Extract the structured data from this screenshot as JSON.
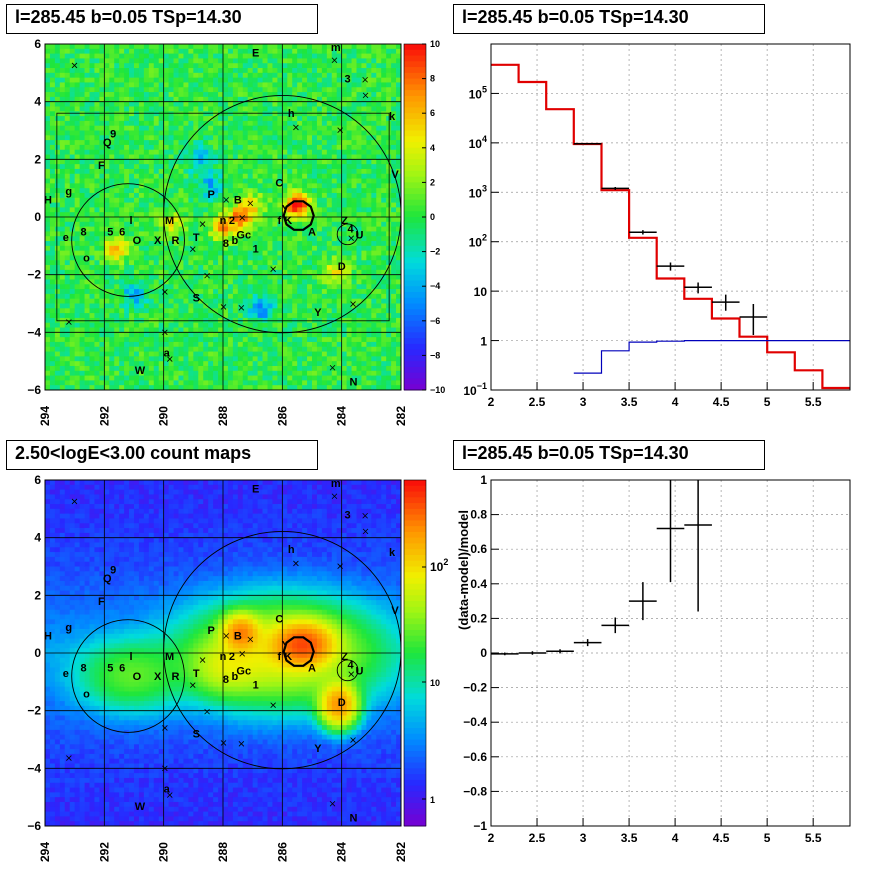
{
  "titles": {
    "tl": "l=285.45 b=0.05 TSp=14.30",
    "tr": "l=285.45 b=0.05 TSp=14.30",
    "bl": "2.50<logE<3.00 count maps",
    "br": "l=285.45 b=0.05 TSp=14.30"
  },
  "chart_data": [
    {
      "id": "residual-map",
      "type": "heatmap",
      "x_ticks": [
        "294",
        "292",
        "290",
        "288",
        "286",
        "284",
        "282"
      ],
      "y_ticks": [
        "6",
        "4",
        "2",
        "0",
        "−2",
        "−4",
        "−6"
      ],
      "colorbar_ticks": [
        "10",
        "8",
        "6",
        "4",
        "2",
        "0",
        "−2",
        "−4",
        "−6",
        "−8",
        "−10"
      ],
      "zlim": [
        -10,
        10
      ],
      "source_labels": [
        {
          "t": "E",
          "l": 286.9,
          "b": 5.7
        },
        {
          "t": "m",
          "l": 284.2,
          "b": 5.9
        },
        {
          "t": "3",
          "l": 283.8,
          "b": 4.8
        },
        {
          "t": "h",
          "l": 285.7,
          "b": 3.6
        },
        {
          "t": "k",
          "l": 282.3,
          "b": 3.5
        },
        {
          "t": "9",
          "l": 291.7,
          "b": 2.9
        },
        {
          "t": "Q",
          "l": 291.9,
          "b": 2.6
        },
        {
          "t": "F",
          "l": 292.1,
          "b": 1.8
        },
        {
          "t": "V",
          "l": 282.2,
          "b": 1.5
        },
        {
          "t": "g",
          "l": 293.2,
          "b": 0.9
        },
        {
          "t": "C",
          "l": 286.1,
          "b": 1.2
        },
        {
          "t": "P",
          "l": 288.4,
          "b": 0.8
        },
        {
          "t": "H",
          "l": 293.9,
          "b": 0.6
        },
        {
          "t": "B",
          "l": 287.5,
          "b": 0.6
        },
        {
          "t": "Y",
          "l": 285.9,
          "b": 0.3
        },
        {
          "t": "n",
          "l": 288.0,
          "b": -0.1
        },
        {
          "t": "2",
          "l": 287.7,
          "b": -0.1
        },
        {
          "t": "l",
          "l": 291.1,
          "b": -0.1
        },
        {
          "t": "M",
          "l": 289.8,
          "b": -0.1
        },
        {
          "t": "f",
          "l": 286.1,
          "b": -0.1
        },
        {
          "t": "K",
          "l": 285.8,
          "b": -0.1
        },
        {
          "t": "Z",
          "l": 283.9,
          "b": -0.1
        },
        {
          "t": "8",
          "l": 292.7,
          "b": -0.5
        },
        {
          "t": "5",
          "l": 291.8,
          "b": -0.5
        },
        {
          "t": "6",
          "l": 291.4,
          "b": -0.5
        },
        {
          "t": "A",
          "l": 285.0,
          "b": -0.5
        },
        {
          "t": "4",
          "l": 283.7,
          "b": -0.4
        },
        {
          "t": "U",
          "l": 283.4,
          "b": -0.6
        },
        {
          "t": "e",
          "l": 293.3,
          "b": -0.7
        },
        {
          "t": "O",
          "l": 290.9,
          "b": -0.8
        },
        {
          "t": "X",
          "l": 290.2,
          "b": -0.8
        },
        {
          "t": "R",
          "l": 289.6,
          "b": -0.8
        },
        {
          "t": "T",
          "l": 288.9,
          "b": -0.7
        },
        {
          "t": "8",
          "l": 287.9,
          "b": -0.9
        },
        {
          "t": "b",
          "l": 287.6,
          "b": -0.8
        },
        {
          "t": "Gc",
          "l": 287.3,
          "b": -0.6
        },
        {
          "t": "1",
          "l": 286.9,
          "b": -1.1
        },
        {
          "t": "o",
          "l": 292.6,
          "b": -1.4
        },
        {
          "t": "D",
          "l": 284.0,
          "b": -1.7
        },
        {
          "t": "S",
          "l": 288.9,
          "b": -2.8
        },
        {
          "t": "Y",
          "l": 284.8,
          "b": -3.3
        },
        {
          "t": "a",
          "l": 289.9,
          "b": -4.7
        },
        {
          "t": "W",
          "l": 290.8,
          "b": -5.3
        },
        {
          "t": "N",
          "l": 283.6,
          "b": -5.7
        }
      ],
      "circles": [
        {
          "l": 291.2,
          "b": -0.8,
          "r": 1.9
        },
        {
          "l": 286.0,
          "b": 0.1,
          "r": 4.0
        },
        {
          "l": 283.8,
          "b": -0.6,
          "r": 0.35
        }
      ],
      "hot_spots": [
        {
          "l": 285.5,
          "b": 0.4,
          "v": 10
        },
        {
          "l": 287.4,
          "b": 0.0,
          "v": 7
        },
        {
          "l": 288.0,
          "b": -0.4,
          "v": 6
        },
        {
          "l": 291.6,
          "b": -1.1,
          "v": 6
        },
        {
          "l": 284.2,
          "b": -1.9,
          "v": 5
        },
        {
          "l": 287.0,
          "b": 0.4,
          "v": 4
        },
        {
          "l": 289.7,
          "b": -0.2,
          "v": 4
        },
        {
          "l": 288.8,
          "b": 2.0,
          "v": -4
        },
        {
          "l": 286.7,
          "b": -3.2,
          "v": -5
        },
        {
          "l": 291.0,
          "b": -2.7,
          "v": -4
        },
        {
          "l": 288.4,
          "b": 1.1,
          "v": -4
        }
      ]
    },
    {
      "id": "spectrum",
      "type": "line",
      "log_y": true,
      "xlim": [
        2,
        5.9
      ],
      "ylim": [
        0.1,
        1000000
      ],
      "x_ticks": [
        "2",
        "2.5",
        "3",
        "3.5",
        "4",
        "4.5",
        "5",
        "5.5"
      ],
      "y_ticks": [
        {
          "v": 0.1,
          "sup": "−1",
          "base": "10"
        },
        {
          "v": 1,
          "text": "1"
        },
        {
          "v": 10,
          "text": "10"
        },
        {
          "v": 100,
          "sup": "2",
          "base": "10"
        },
        {
          "v": 1000,
          "sup": "3",
          "base": "10"
        },
        {
          "v": 10000,
          "sup": "4",
          "base": "10"
        },
        {
          "v": 100000,
          "sup": "5",
          "base": "10"
        }
      ],
      "series": [
        {
          "color": "#e00000",
          "edges": [
            2.0,
            2.3,
            2.6,
            2.9,
            3.2,
            3.5,
            3.8,
            4.1,
            4.4,
            4.7,
            5.0,
            5.3,
            5.6,
            5.9
          ],
          "values": [
            380000,
            170000,
            48000,
            9500,
            1100,
            120,
            18,
            7,
            2.8,
            1.2,
            0.58,
            0.25,
            0.11
          ]
        },
        {
          "color": "#0000bb",
          "edges": [
            2.9,
            3.2,
            3.5,
            3.8,
            4.1,
            4.4,
            4.7,
            5.0,
            5.3,
            5.6,
            5.9
          ],
          "values": [
            0.22,
            0.62,
            0.93,
            0.97,
            1.0,
            1.0,
            1.0,
            1.0,
            1.0,
            1.0
          ]
        }
      ],
      "points": [
        {
          "x": 3.05,
          "xerr": 0.15,
          "y": 9600,
          "ylo": 9400,
          "yhi": 9800
        },
        {
          "x": 3.35,
          "xerr": 0.15,
          "y": 1200,
          "ylo": 1120,
          "yhi": 1280
        },
        {
          "x": 3.65,
          "xerr": 0.15,
          "y": 155,
          "ylo": 140,
          "yhi": 172
        },
        {
          "x": 3.95,
          "xerr": 0.15,
          "y": 32,
          "ylo": 26,
          "yhi": 38
        },
        {
          "x": 4.25,
          "xerr": 0.15,
          "y": 12,
          "ylo": 9,
          "yhi": 15
        },
        {
          "x": 4.55,
          "xerr": 0.15,
          "y": 6,
          "ylo": 4,
          "yhi": 8.5
        },
        {
          "x": 4.85,
          "xerr": 0.15,
          "y": 3,
          "ylo": 1.3,
          "yhi": 5.5
        }
      ]
    },
    {
      "id": "count-map",
      "type": "heatmap",
      "log_z": true,
      "x_ticks": [
        "294",
        "292",
        "290",
        "288",
        "286",
        "284",
        "282"
      ],
      "y_ticks": [
        "6",
        "4",
        "2",
        "0",
        "−2",
        "−4",
        "−6"
      ],
      "colorbar_ticks": [
        {
          "v": 1000,
          "sup": "2",
          "base": "10"
        },
        {
          "v": 10,
          "text": "10"
        },
        {
          "v": 1,
          "text": "1"
        }
      ],
      "blobs": [
        {
          "l": 285.3,
          "b": 0.3,
          "amp": 260,
          "sl": 0.8,
          "sb": 0.6
        },
        {
          "l": 287.4,
          "b": 0.7,
          "amp": 180,
          "sl": 0.5,
          "sb": 0.5
        },
        {
          "l": 284.1,
          "b": -1.8,
          "amp": 180,
          "sl": 0.5,
          "sb": 0.6
        },
        {
          "l": 286.0,
          "b": 0.0,
          "amp": 70,
          "sl": 2.5,
          "sb": 1.4
        },
        {
          "l": 287.9,
          "b": -0.5,
          "amp": 40,
          "sl": 1.0,
          "sb": 0.8
        },
        {
          "l": 291.1,
          "b": -0.8,
          "amp": 25,
          "sl": 1.5,
          "sb": 1.0
        }
      ]
    },
    {
      "id": "residual-ratio",
      "type": "scatter",
      "xlim": [
        2,
        5.9
      ],
      "ylim": [
        -1,
        1
      ],
      "x_ticks": [
        "2",
        "2.5",
        "3",
        "3.5",
        "4",
        "4.5",
        "5",
        "5.5"
      ],
      "y_ticks": [
        "1",
        "0.8",
        "0.6",
        "0.4",
        "0.2",
        "0",
        "−0.2",
        "−0.4",
        "−0.6",
        "−0.8",
        "−1"
      ],
      "ylabel": "(data-model)/model",
      "points": [
        {
          "x": 2.15,
          "xerr": 0.15,
          "y": -0.005,
          "err": 0.008
        },
        {
          "x": 2.45,
          "xerr": 0.15,
          "y": 0.0,
          "err": 0.01
        },
        {
          "x": 2.75,
          "xerr": 0.15,
          "y": 0.01,
          "err": 0.012
        },
        {
          "x": 3.05,
          "xerr": 0.15,
          "y": 0.06,
          "err": 0.02
        },
        {
          "x": 3.35,
          "xerr": 0.15,
          "y": 0.16,
          "err": 0.045
        },
        {
          "x": 3.65,
          "xerr": 0.15,
          "y": 0.3,
          "err": 0.11
        },
        {
          "x": 3.95,
          "xerr": 0.15,
          "y": 0.72,
          "err": 0.31
        },
        {
          "x": 4.25,
          "xerr": 0.15,
          "y": 0.74,
          "err": 0.5
        }
      ]
    }
  ]
}
